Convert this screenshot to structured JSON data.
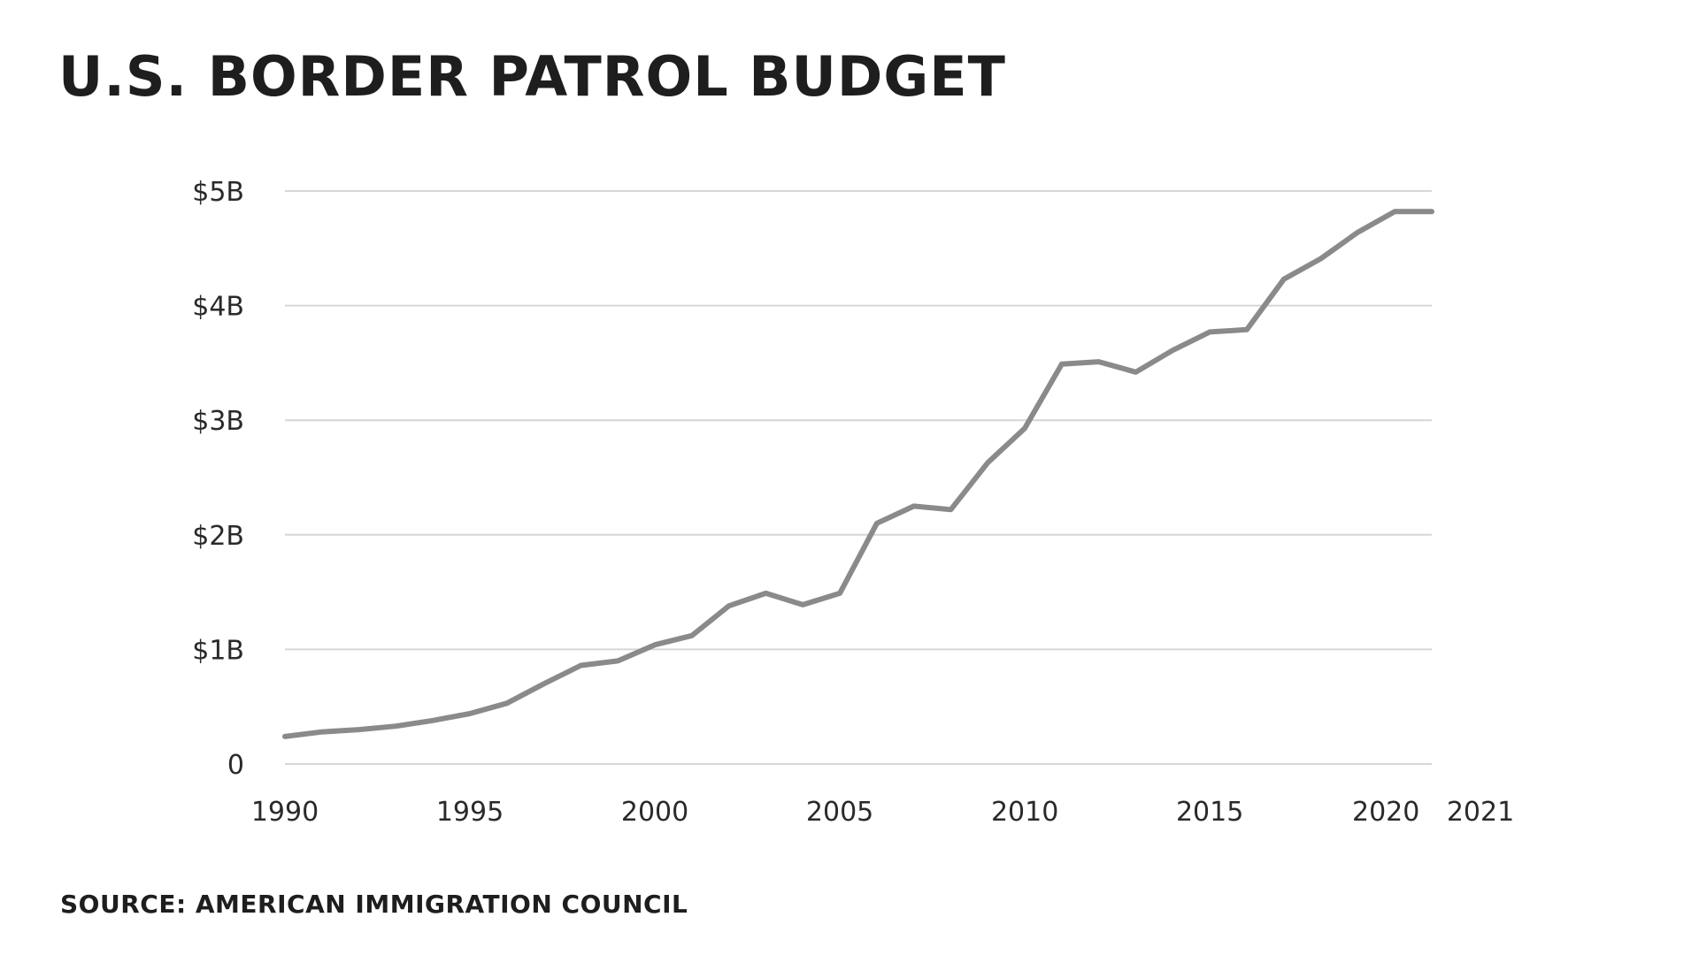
{
  "chart_data": {
    "type": "line",
    "title": "U.S. BORDER PATROL BUDGET",
    "source": "SOURCE: AMERICAN IMMIGRATION COUNCIL",
    "xlabel": "",
    "ylabel": "",
    "xlim": [
      1990,
      2021
    ],
    "ylim": [
      0,
      5
    ],
    "x_ticks": [
      {
        "value": 1990,
        "label": "1990"
      },
      {
        "value": 1995,
        "label": "1995"
      },
      {
        "value": 2000,
        "label": "2000"
      },
      {
        "value": 2005,
        "label": "2005"
      },
      {
        "value": 2010,
        "label": "2010"
      },
      {
        "value": 2015,
        "label": "2015"
      },
      {
        "value": 2020,
        "label": "2020"
      },
      {
        "value": 2021,
        "label": "2021"
      }
    ],
    "y_ticks": [
      {
        "value": 0,
        "label": "0"
      },
      {
        "value": 1,
        "label": "$1B"
      },
      {
        "value": 2,
        "label": "$2B"
      },
      {
        "value": 3,
        "label": "$3B"
      },
      {
        "value": 4,
        "label": "$4B"
      },
      {
        "value": 5,
        "label": "$5B"
      }
    ],
    "grid": true,
    "line_color": "#8a8a8a",
    "grid_color": "#d6d6d6",
    "series": [
      {
        "x": [
          1990,
          1991,
          1992,
          1993,
          1994,
          1995,
          1996,
          1997,
          1998,
          1999,
          2000,
          2001,
          2002,
          2003,
          2004,
          2005,
          2006,
          2007,
          2008,
          2009,
          2010,
          2011,
          2012,
          2013,
          2014,
          2015,
          2016,
          2017,
          2018,
          2019,
          2020,
          2021
        ],
        "values": [
          0.24,
          0.28,
          0.3,
          0.33,
          0.38,
          0.44,
          0.53,
          0.7,
          0.86,
          0.9,
          1.04,
          1.12,
          1.38,
          1.49,
          1.39,
          1.49,
          2.1,
          2.25,
          2.22,
          2.63,
          2.93,
          3.49,
          3.51,
          3.42,
          3.61,
          3.77,
          3.79,
          4.23,
          4.41,
          4.64,
          4.82,
          4.82
        ]
      }
    ]
  }
}
